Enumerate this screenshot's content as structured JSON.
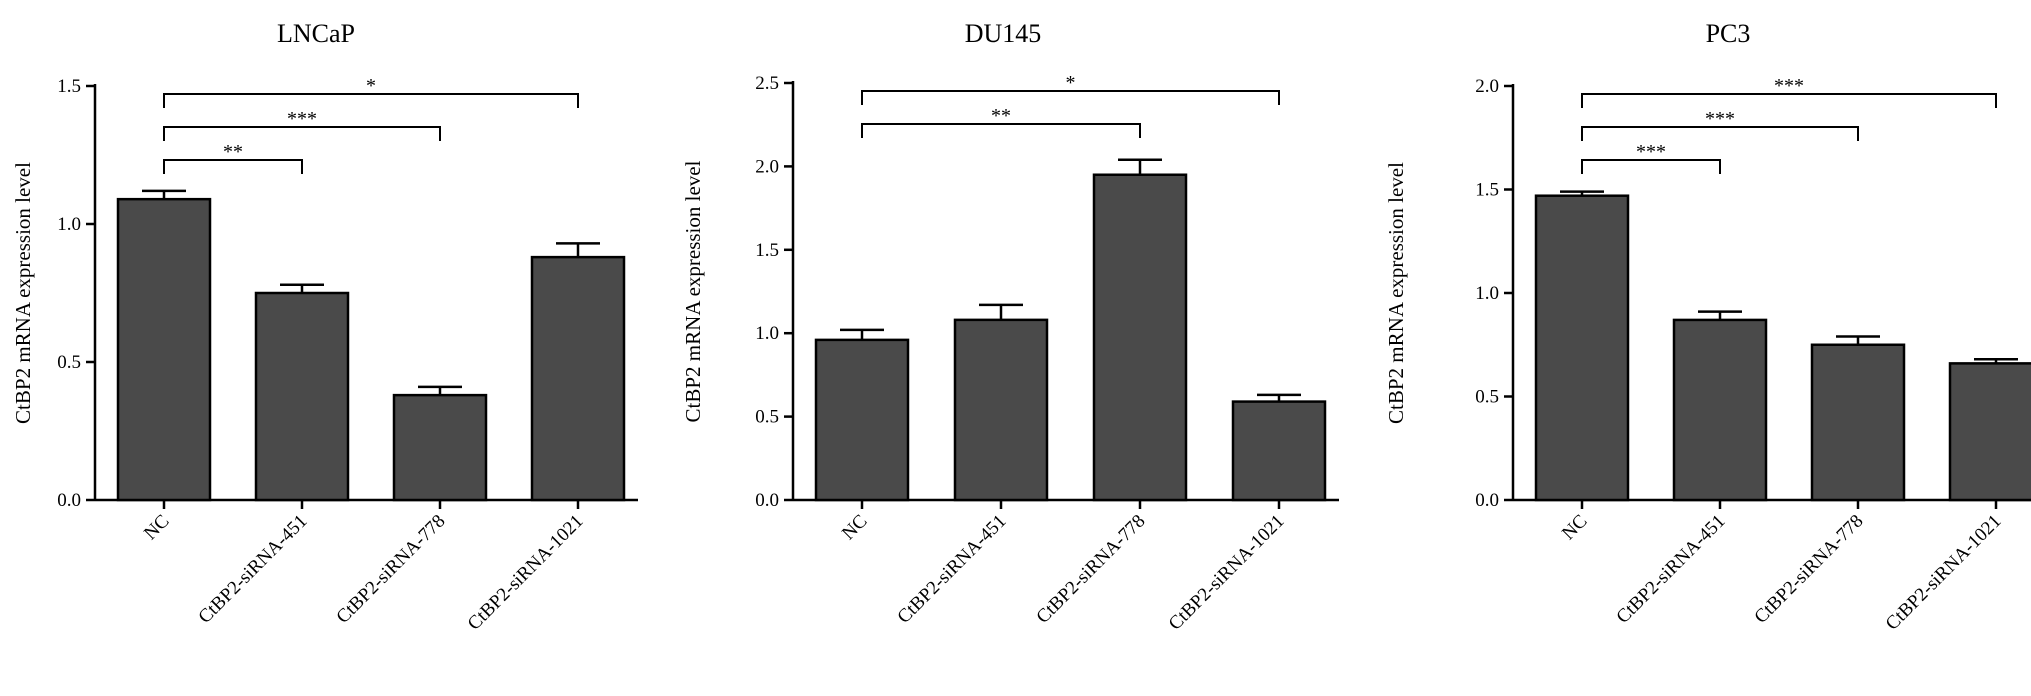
{
  "chart_data": [
    {
      "type": "bar",
      "title": "LNCaP",
      "ylabel": "CtBP2 mRNA  expression  level",
      "ylim": [
        0,
        1.5
      ],
      "yticks": [
        0.0,
        0.5,
        1.0,
        1.5
      ],
      "ytick_labels": [
        "0.0",
        "0.5",
        "1.0",
        "1.5"
      ],
      "categories": [
        "NC",
        "CtBP2-siRNA-451",
        "CtBP2-siRNA-778",
        "CtBP2-siRNA-1021"
      ],
      "values": [
        1.09,
        0.75,
        0.38,
        0.88
      ],
      "errors": [
        0.03,
        0.03,
        0.03,
        0.05
      ],
      "bar_color": "#4a4a4a",
      "significance": [
        {
          "from": 0,
          "to": 1,
          "label": "**"
        },
        {
          "from": 0,
          "to": 2,
          "label": "***"
        },
        {
          "from": 0,
          "to": 3,
          "label": "*"
        }
      ]
    },
    {
      "type": "bar",
      "title": "DU145",
      "ylabel": "CtBP2 mRNA  expression  level",
      "ylim": [
        0,
        2.5
      ],
      "yticks": [
        0.0,
        0.5,
        1.0,
        1.5,
        2.0,
        2.5
      ],
      "ytick_labels": [
        "0.0",
        "0.5",
        "1.0",
        "1.5",
        "2.0",
        "2.5"
      ],
      "categories": [
        "NC",
        "CtBP2-siRNA-451",
        "CtBP2-siRNA-778",
        "CtBP2-siRNA-1021"
      ],
      "values": [
        0.96,
        1.08,
        1.95,
        0.59
      ],
      "errors": [
        0.06,
        0.09,
        0.09,
        0.04
      ],
      "bar_color": "#4a4a4a",
      "significance": [
        {
          "from": 0,
          "to": 2,
          "label": "**"
        },
        {
          "from": 0,
          "to": 3,
          "label": "*"
        }
      ]
    },
    {
      "type": "bar",
      "title": "PC3",
      "ylabel": "CtBP2 mRNA  expression  level",
      "ylim": [
        0,
        2.0
      ],
      "yticks": [
        0.0,
        0.5,
        1.0,
        1.5,
        2.0
      ],
      "ytick_labels": [
        "0.0",
        "0.5",
        "1.0",
        "1.5",
        "2.0"
      ],
      "categories": [
        "NC",
        "CtBP2-siRNA-451",
        "CtBP2-siRNA-778",
        "CtBP2-siRNA-1021"
      ],
      "values": [
        1.47,
        0.87,
        0.75,
        0.66
      ],
      "errors": [
        0.02,
        0.04,
        0.04,
        0.02
      ],
      "bar_color": "#4a4a4a",
      "significance": [
        {
          "from": 0,
          "to": 1,
          "label": "***"
        },
        {
          "from": 0,
          "to": 2,
          "label": "***"
        },
        {
          "from": 0,
          "to": 3,
          "label": "***"
        }
      ]
    }
  ]
}
